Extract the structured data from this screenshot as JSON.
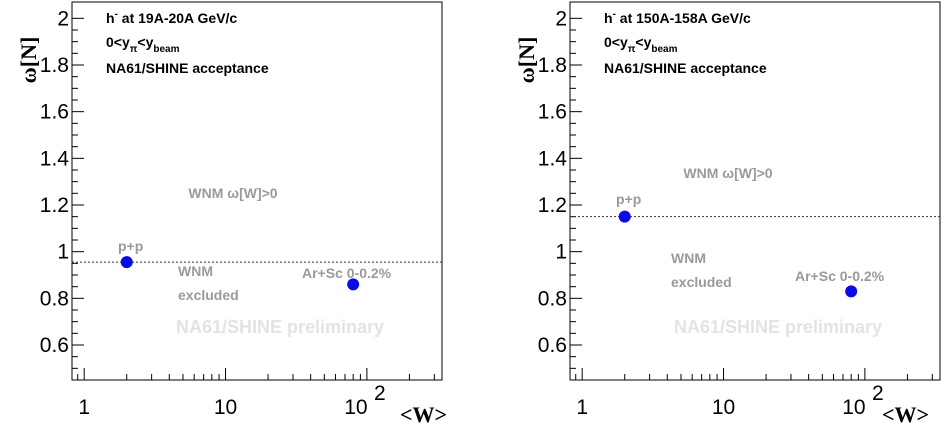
{
  "colors": {
    "marker": "#0a0ae6",
    "annotation": "#9a9a9a",
    "preliminary": "#e3e3e3",
    "axis": "#000000"
  },
  "chart_data": [
    {
      "type": "scatter",
      "title_line1": "h",
      "title_sup": "-",
      "title_line1_rest": " at 19A-20A GeV/c",
      "title_line2": {
        "a": "0<y",
        "a_sub": "π",
        "b": "<y",
        "b_sub": "beam"
      },
      "title_line3": "NA61/SHINE acceptance",
      "ylabel": "ω[N]",
      "xlabel": "<W>",
      "xscale": "log",
      "xlim": [
        0.82,
        340
      ],
      "ylim": [
        0.45,
        2.07
      ],
      "x_tick_labels": {
        "t1": "1",
        "t2": "10",
        "t3_base": "10",
        "t3_exp": "2"
      },
      "y_tick_labels": [
        "0.6",
        "0.8",
        "1",
        "1.2",
        "1.4",
        "1.6",
        "1.8",
        "2"
      ],
      "reference_line": 0.955,
      "points": [
        {
          "label": "p+p",
          "x": 2,
          "y": 0.955
        },
        {
          "label": "Ar+Sc 0-0.2%",
          "x": 80,
          "y": 0.86
        }
      ],
      "annotations": {
        "above": "WNM ω[W]>0",
        "below_1": "WNM",
        "below_2": "excluded",
        "preliminary": "NA61/SHINE preliminary"
      }
    },
    {
      "type": "scatter",
      "title_line1": "h",
      "title_sup": "-",
      "title_line1_rest": " at 150A-158A GeV/c",
      "title_line2": {
        "a": "0<y",
        "a_sub": "π",
        "b": "<y",
        "b_sub": "beam"
      },
      "title_line3": "NA61/SHINE acceptance",
      "ylabel": "ω[N]",
      "xlabel": "<W>",
      "xscale": "log",
      "xlim": [
        0.82,
        340
      ],
      "ylim": [
        0.45,
        2.07
      ],
      "x_tick_labels": {
        "t1": "1",
        "t2": "10",
        "t3_base": "10",
        "t3_exp": "2"
      },
      "y_tick_labels": [
        "0.6",
        "0.8",
        "1",
        "1.2",
        "1.4",
        "1.6",
        "1.8",
        "2"
      ],
      "reference_line": 1.15,
      "points": [
        {
          "label": "p+p",
          "x": 2,
          "y": 1.15
        },
        {
          "label": "Ar+Sc 0-0.2%",
          "x": 80,
          "y": 0.83
        }
      ],
      "annotations": {
        "above": "WNM ω[W]>0",
        "below_1": "WNM",
        "below_2": "excluded",
        "preliminary": "NA61/SHINE preliminary"
      }
    }
  ]
}
